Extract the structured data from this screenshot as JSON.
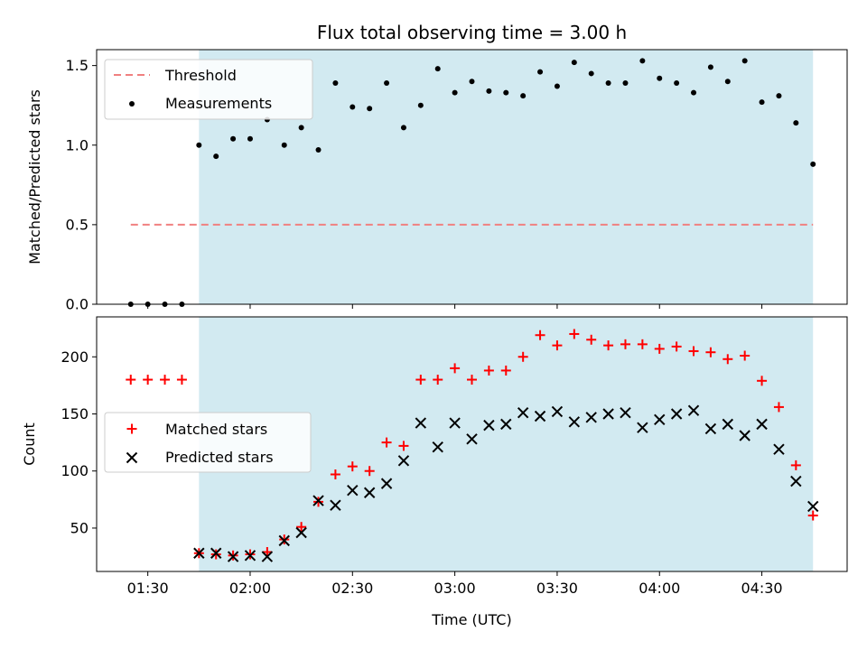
{
  "chart_data": [
    {
      "type": "scatter",
      "title": "Flux total observing time = 3.00 h",
      "xlabel": "",
      "ylabel": "Matched/Predicted stars",
      "ylim": [
        0,
        1.6
      ],
      "yticks": [
        "0.0",
        "0.5",
        "1.0",
        "1.5"
      ],
      "xlim": [
        "01:15",
        "04:55"
      ],
      "highlight_range": [
        "01:45",
        "04:45"
      ],
      "legend_position": "upper-left",
      "series": [
        {
          "name": "Threshold",
          "kind": "dashed-line",
          "color": "#f08080",
          "x": [
            "01:25",
            "04:45"
          ],
          "y": [
            0.5,
            0.5
          ]
        },
        {
          "name": "Measurements",
          "kind": "points",
          "color": "#000000",
          "x": [
            "01:25",
            "01:30",
            "01:35",
            "01:40",
            "01:45",
            "01:50",
            "01:55",
            "02:00",
            "02:05",
            "02:10",
            "02:15",
            "02:20",
            "02:25",
            "02:30",
            "02:35",
            "02:40",
            "02:45",
            "02:50",
            "02:55",
            "03:00",
            "03:05",
            "03:10",
            "03:15",
            "03:20",
            "03:25",
            "03:30",
            "03:35",
            "03:40",
            "03:45",
            "03:50",
            "03:55",
            "04:00",
            "04:05",
            "04:10",
            "04:15",
            "04:20",
            "04:25",
            "04:30",
            "04:35",
            "04:40",
            "04:45"
          ],
          "y": [
            0.0,
            0.0,
            0.0,
            0.0,
            1.0,
            0.93,
            1.04,
            1.04,
            1.16,
            1.0,
            1.11,
            0.97,
            1.39,
            1.24,
            1.23,
            1.39,
            1.11,
            1.25,
            1.48,
            1.33,
            1.4,
            1.34,
            1.33,
            1.31,
            1.46,
            1.37,
            1.52,
            1.45,
            1.39,
            1.39,
            1.53,
            1.42,
            1.39,
            1.33,
            1.49,
            1.4,
            1.53,
            1.27,
            1.31,
            1.14,
            0.88
          ]
        }
      ]
    },
    {
      "type": "scatter",
      "title": "",
      "xlabel": "Time (UTC)",
      "ylabel": "Count",
      "ylim": [
        12,
        235
      ],
      "yticks": [
        "50",
        "100",
        "150",
        "200"
      ],
      "xlim": [
        "01:15",
        "04:55"
      ],
      "xticks": [
        "01:30",
        "02:00",
        "02:30",
        "03:00",
        "03:30",
        "04:00",
        "04:30"
      ],
      "highlight_range": [
        "01:45",
        "04:45"
      ],
      "legend_position": "center-left",
      "series": [
        {
          "name": "Matched stars",
          "kind": "plus",
          "color": "#ff0000",
          "x": [
            "01:25",
            "01:30",
            "01:35",
            "01:40",
            "01:45",
            "01:50",
            "01:55",
            "02:00",
            "02:05",
            "02:10",
            "02:15",
            "02:20",
            "02:25",
            "02:30",
            "02:35",
            "02:40",
            "02:45",
            "02:50",
            "02:55",
            "03:00",
            "03:05",
            "03:10",
            "03:15",
            "03:20",
            "03:25",
            "03:30",
            "03:35",
            "03:40",
            "03:45",
            "03:50",
            "03:55",
            "04:00",
            "04:05",
            "04:10",
            "04:15",
            "04:20",
            "04:25",
            "04:30",
            "04:35",
            "04:40",
            "04:45"
          ],
          "y": [
            180,
            180,
            180,
            180,
            28,
            27,
            26,
            27,
            29,
            40,
            51,
            73,
            97,
            104,
            100,
            125,
            122,
            180,
            180,
            190,
            180,
            188,
            188,
            200,
            219,
            210,
            220,
            215,
            210,
            211,
            211,
            207,
            209,
            205,
            204,
            198,
            201,
            179,
            156,
            105,
            61
          ]
        },
        {
          "name": "Predicted stars",
          "kind": "x",
          "color": "#000000",
          "x": [
            "01:45",
            "01:50",
            "01:55",
            "02:00",
            "02:05",
            "02:10",
            "02:15",
            "02:20",
            "02:25",
            "02:30",
            "02:35",
            "02:40",
            "02:45",
            "02:50",
            "02:55",
            "03:00",
            "03:05",
            "03:10",
            "03:15",
            "03:20",
            "03:25",
            "03:30",
            "03:35",
            "03:40",
            "03:45",
            "03:50",
            "03:55",
            "04:00",
            "04:05",
            "04:10",
            "04:15",
            "04:20",
            "04:25",
            "04:30",
            "04:35",
            "04:40",
            "04:45"
          ],
          "y": [
            28,
            28,
            25,
            26,
            25,
            39,
            46,
            74,
            70,
            83,
            81,
            89,
            109,
            142,
            121,
            142,
            128,
            140,
            141,
            151,
            148,
            152,
            143,
            147,
            150,
            151,
            138,
            145,
            150,
            153,
            137,
            141,
            131,
            141,
            119,
            91,
            69
          ]
        }
      ]
    }
  ],
  "colors": {
    "highlight": "#add8e6",
    "threshold": "#f08080",
    "matched": "#ff0000",
    "predicted": "#000000",
    "measurements": "#000000"
  }
}
